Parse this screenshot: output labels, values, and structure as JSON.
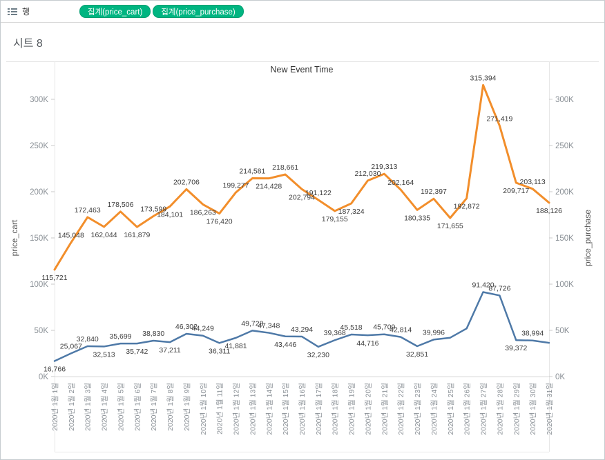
{
  "toolbar": {
    "shelf_label": "행",
    "pills": [
      {
        "label": "집계(price_cart)",
        "color": "#00b581"
      },
      {
        "label": "집계(price_purchase)",
        "color": "#00b581"
      }
    ]
  },
  "sheet": {
    "title": "시트 8"
  },
  "chart_data": {
    "type": "line",
    "title": "New Event Time",
    "grid": false,
    "legend": "none",
    "x_axis": {
      "labels": [
        "2020년 1월 1일",
        "2020년 1월 2일",
        "2020년 1월 3일",
        "2020년 1월 4일",
        "2020년 1월 5일",
        "2020년 1월 6일",
        "2020년 1월 7일",
        "2020년 1월 8일",
        "2020년 1월 9일",
        "2020년 1월 10일",
        "2020년 1월 11일",
        "2020년 1월 12일",
        "2020년 1월 13일",
        "2020년 1월 14일",
        "2020년 1월 15일",
        "2020년 1월 16일",
        "2020년 1월 17일",
        "2020년 1월 18일",
        "2020년 1월 19일",
        "2020년 1월 20일",
        "2020년 1월 21일",
        "2020년 1월 22일",
        "2020년 1월 23일",
        "2020년 1월 24일",
        "2020년 1월 25일",
        "2020년 1월 26일",
        "2020년 1월 27일",
        "2020년 1월 28일",
        "2020년 1월 29일",
        "2020년 1월 30일",
        "2020년 1월 31일"
      ]
    },
    "y_left": {
      "label": "price_cart",
      "min": 0,
      "max": 340000,
      "ticks": [
        "0K",
        "50K",
        "100K",
        "150K",
        "200K",
        "250K",
        "300K"
      ]
    },
    "y_right": {
      "label": "price_purchase",
      "min": 0,
      "max": 340000,
      "ticks": [
        "0K",
        "50K",
        "100K",
        "150K",
        "200K",
        "250K",
        "300K"
      ]
    },
    "series": [
      {
        "name": "price_cart",
        "axis": "left",
        "color": "#f28e2b",
        "values": [
          115721,
          145048,
          172463,
          162044,
          178506,
          161879,
          173599,
          184101,
          202706,
          186263,
          176420,
          199277,
          214581,
          214428,
          218661,
          202794,
          191122,
          179155,
          187324,
          212030,
          219313,
          202164,
          180335,
          192397,
          171655,
          192872,
          315394,
          271419,
          209717,
          203113,
          188126
        ],
        "labels": [
          "115,721",
          "145,048",
          "172,463",
          "162,044",
          "178,506",
          "161,879",
          "173,599",
          "184,101",
          "202,706",
          "186,263",
          "176,420",
          "199,277",
          "214,581",
          "214,428",
          "218,661",
          "202,794",
          "191,122",
          "179,155",
          "187,324",
          "212,030",
          "219,313",
          "202,164",
          "180,335",
          "192,397",
          "171,655",
          "192,872",
          "315,394",
          "271,419",
          "209,717",
          "203,113",
          "188,126"
        ]
      },
      {
        "name": "price_purchase",
        "axis": "right",
        "color": "#4e79a7",
        "values": [
          16766,
          25067,
          32840,
          32513,
          35699,
          35742,
          38830,
          37211,
          46302,
          44249,
          36311,
          41881,
          49728,
          47348,
          43446,
          43294,
          32230,
          39368,
          45518,
          44716,
          45709,
          42814,
          32851,
          39996,
          42000,
          52000,
          91420,
          87726,
          39372,
          38994,
          36500
        ],
        "labels": [
          "16,766",
          "25,067",
          "32,840",
          "32,513",
          "35,699",
          "35,742",
          "38,830",
          "37,211",
          "46,302",
          "44,249",
          "36,311",
          "41,881",
          "49,728",
          "47,348",
          "43,446",
          "43,294",
          "32,230",
          "39,368",
          "45,518",
          "44,716",
          "45,709",
          "42,814",
          "32,851",
          "39,996",
          "",
          "",
          "91,420",
          "87,726",
          "39,372",
          "38,994",
          ""
        ]
      }
    ]
  }
}
